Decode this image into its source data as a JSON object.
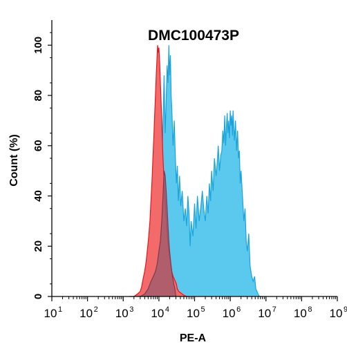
{
  "chart_data": {
    "type": "area",
    "title": "DMC100473P",
    "xlabel": "PE-A",
    "ylabel": "Count  (%)",
    "x_scale": "log10",
    "xlim": [
      10,
      1000000000
    ],
    "ylim": [
      0,
      110
    ],
    "x_ticks": [
      {
        "base": "10",
        "exp": "1",
        "value": 10
      },
      {
        "base": "10",
        "exp": "2",
        "value": 100
      },
      {
        "base": "10",
        "exp": "3",
        "value": 1000
      },
      {
        "base": "10",
        "exp": "4",
        "value": 10000
      },
      {
        "base": "10",
        "exp": "5",
        "value": 100000
      },
      {
        "base": "10",
        "exp": "6",
        "value": 1000000
      },
      {
        "base": "10",
        "exp": "7",
        "value": 10000000
      },
      {
        "base": "10",
        "exp": "8",
        "value": 100000000
      },
      {
        "base": "10",
        "exp": "9",
        "value": 1000000000
      }
    ],
    "y_ticks": [
      "0",
      "20",
      "40",
      "60",
      "80",
      "100"
    ],
    "y_tick_values": [
      0,
      20,
      40,
      60,
      80,
      100
    ],
    "series": [
      {
        "color_fill": "#5BC8EE",
        "color_line": "#1AA3DB",
        "x": [
          4000,
          6000,
          7000,
          8000,
          9000,
          10000,
          11000,
          12500,
          14000,
          15000,
          16000,
          17000,
          18000,
          19000,
          20000,
          21000,
          22000,
          23000,
          25000,
          27000,
          29000,
          31000,
          33000,
          35000,
          38000,
          41000,
          45000,
          50000,
          55000,
          60000,
          65000,
          70000,
          75000,
          80000,
          90000,
          100000,
          110000,
          120000,
          135000,
          150000,
          165000,
          180000,
          200000,
          220000,
          240000,
          260000,
          280000,
          300000,
          330000,
          360000,
          400000,
          430000,
          460000,
          500000,
          540000,
          580000,
          620000,
          660000,
          700000,
          740000,
          780000,
          820000,
          860000,
          900000,
          950000,
          1000000,
          1050000,
          1100000,
          1150000,
          1200000,
          1300000,
          1400000,
          1500000,
          1600000,
          1700000,
          1800000,
          1900000,
          2000000,
          2200000,
          2400000,
          2600000,
          2800000,
          3000000,
          3300000,
          3600000,
          4000000,
          4400000,
          4800000,
          5200000,
          5600000,
          6000000,
          6600000,
          7200000,
          8000000
        ],
        "y": [
          0,
          0,
          1,
          8,
          30,
          50,
          45,
          60,
          88,
          65,
          78,
          92,
          85,
          100,
          88,
          96,
          80,
          75,
          60,
          70,
          55,
          45,
          52,
          38,
          48,
          36,
          42,
          30,
          35,
          28,
          40,
          33,
          20,
          30,
          24,
          37,
          27,
          40,
          30,
          36,
          42,
          35,
          30,
          40,
          33,
          45,
          38,
          50,
          42,
          55,
          48,
          53,
          60,
          50,
          56,
          58,
          66,
          61,
          72,
          60,
          68,
          73,
          65,
          70,
          63,
          74,
          68,
          72,
          64,
          74,
          62,
          70,
          58,
          66,
          55,
          58,
          45,
          50,
          40,
          30,
          35,
          22,
          18,
          25,
          12,
          8,
          6,
          8,
          3,
          2,
          1,
          0,
          0,
          0
        ]
      },
      {
        "color_fill": "#F26A6A",
        "color_line": "#E8141A",
        "x": [
          1500,
          2000,
          2500,
          3000,
          3300,
          3600,
          4000,
          4400,
          4800,
          5200,
          5600,
          6000,
          6400,
          6800,
          7200,
          7600,
          8000,
          8400,
          8800,
          9200,
          9600,
          10000,
          10500,
          11000,
          11500,
          12000,
          12500,
          13000,
          14000,
          15000,
          16000,
          17000,
          18000,
          19000,
          20000,
          21000,
          22000,
          23000,
          24000,
          25000,
          27000,
          29000,
          31000,
          33000,
          36000,
          40000,
          45000,
          50000,
          60000,
          70000
        ],
        "y": [
          0,
          0,
          1,
          2,
          4,
          7,
          10,
          14,
          19,
          24,
          30,
          38,
          46,
          55,
          63,
          72,
          80,
          88,
          94,
          100,
          97,
          99,
          93,
          85,
          78,
          70,
          62,
          55,
          46,
          38,
          32,
          26,
          21,
          18,
          16,
          14,
          12,
          10,
          9,
          8,
          7,
          6,
          5,
          3,
          2,
          1.5,
          1,
          0.5,
          0,
          0
        ]
      },
      {
        "color_fill": "#9A5A6E",
        "color_line": "#7A3A50",
        "x": [
          3000,
          4000,
          5000,
          6000,
          7000,
          8000,
          9000,
          10000,
          11000,
          12000,
          13000,
          14000,
          15000,
          16000,
          17000,
          18000,
          19000,
          20000,
          22000,
          24000,
          26000,
          28000,
          30000
        ],
        "y": [
          0,
          1,
          3,
          6,
          8,
          10,
          13,
          18,
          22,
          30,
          40,
          50,
          48,
          42,
          35,
          28,
          22,
          18,
          12,
          8,
          5,
          3,
          0
        ]
      }
    ]
  }
}
